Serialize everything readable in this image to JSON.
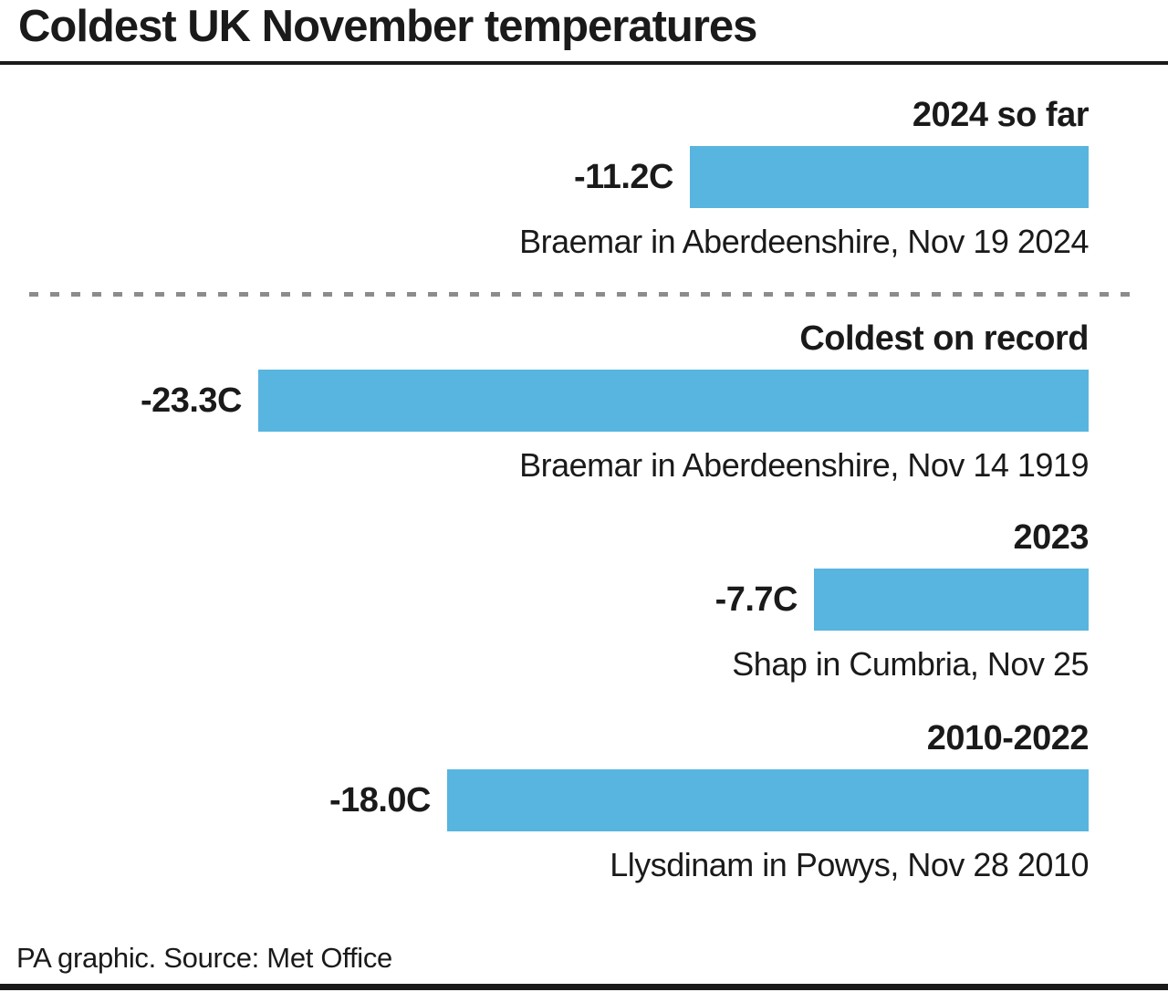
{
  "title": "Coldest UK November temperatures",
  "footer": {
    "credit": "PA graphic. Source: Met Office"
  },
  "colors": {
    "bar": "#57B5DF",
    "text": "#1a1a1a",
    "divider_dash": "#8c8c8c",
    "rule": "#1a1a1a",
    "background": "#ffffff"
  },
  "chart_data": {
    "type": "bar",
    "orientation": "horizontal",
    "title": "Coldest UK November temperatures",
    "unit": "degrees C",
    "value_axis_anchor": "right",
    "max_abs_value": 23.3,
    "legend": "none",
    "grid": false,
    "series": [
      {
        "label": "2024 so far",
        "value": -11.2,
        "value_label": "-11.2C",
        "caption": "Braemar in Aberdeenshire, Nov 19 2024"
      },
      {
        "label": "Coldest on record",
        "value": -23.3,
        "value_label": "-23.3C",
        "caption": "Braemar in Aberdeenshire, Nov 14 1919"
      },
      {
        "label": "2023",
        "value": -7.7,
        "value_label": "-7.7C",
        "caption": "Shap in Cumbria, Nov 25"
      },
      {
        "label": "2010-2022",
        "value": -18.0,
        "value_label": "-18.0C",
        "caption": "Llysdinam in Powys, Nov 28 2010"
      }
    ]
  }
}
